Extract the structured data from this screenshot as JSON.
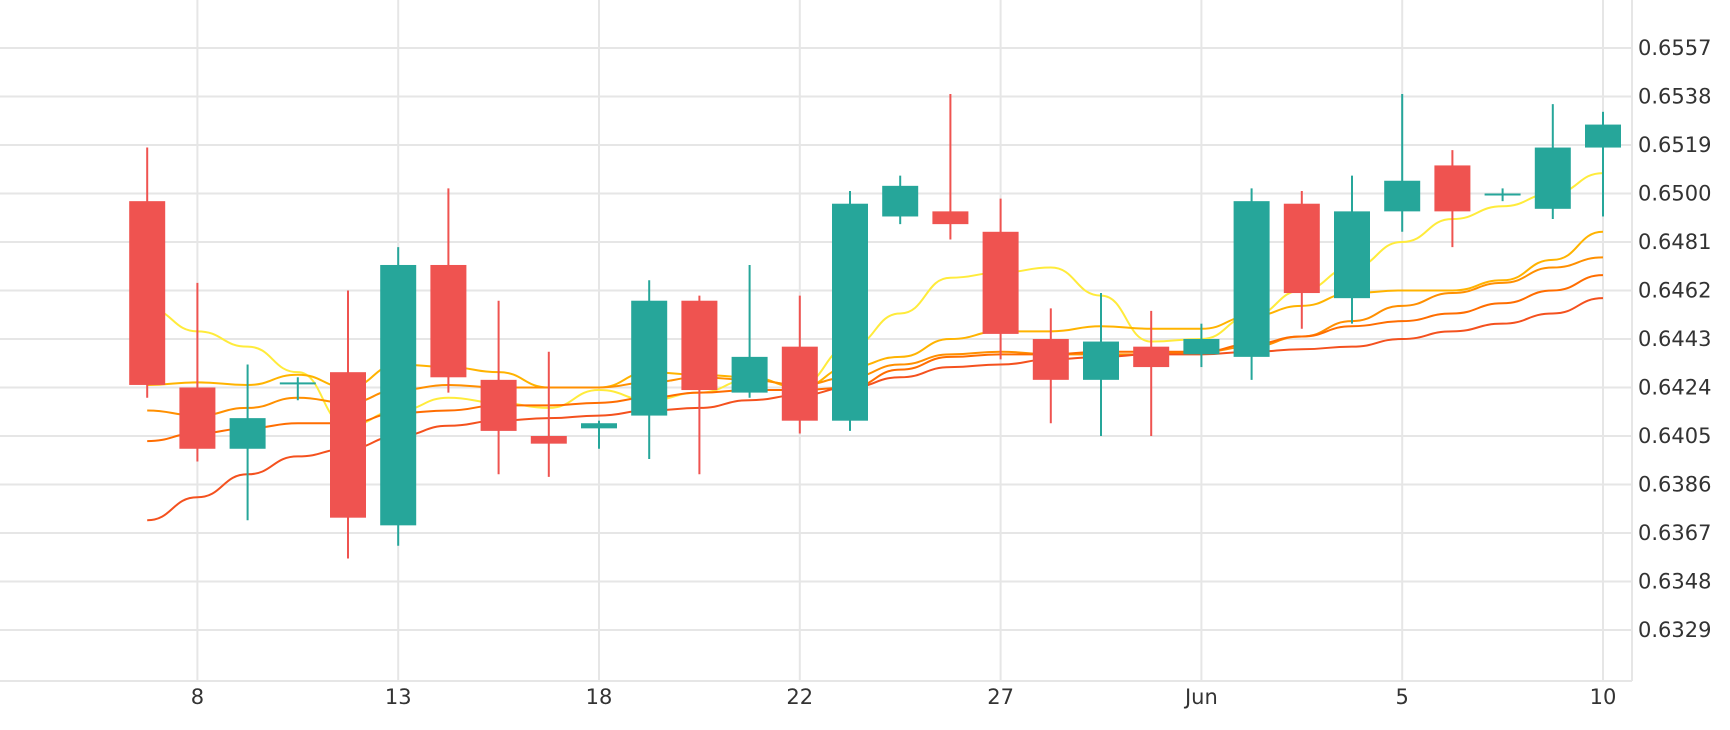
{
  "chart_data": {
    "type": "candlestick",
    "title": "",
    "xlabel": "",
    "ylabel": "",
    "ylim": [
      0.6313,
      0.6576
    ],
    "grid": true,
    "y_ticks": [
      "0.6557",
      "0.6538",
      "0.6519",
      "0.6500",
      "0.6481",
      "0.6462",
      "0.6443",
      "0.6424",
      "0.6405",
      "0.6386",
      "0.6367",
      "0.6348",
      "0.6329"
    ],
    "x_ticks": [
      {
        "label": "8",
        "day_index": 2
      },
      {
        "label": "13",
        "day_index": 6
      },
      {
        "label": "18",
        "day_index": 10
      },
      {
        "label": "22",
        "day_index": 14
      },
      {
        "label": "27",
        "day_index": 18
      },
      {
        "label": "Jun",
        "day_index": 22
      },
      {
        "label": "5",
        "day_index": 26
      },
      {
        "label": "10",
        "day_index": 30
      }
    ],
    "colors": {
      "up": "#26a69a",
      "down": "#ef5350",
      "grid": "#e6e6e6",
      "text": "#333333"
    },
    "candles": [
      {
        "i": 1,
        "open": 0.6497,
        "high": 0.6518,
        "low": 0.642,
        "close": 0.6425
      },
      {
        "i": 2,
        "open": 0.6424,
        "high": 0.6465,
        "low": 0.6395,
        "close": 0.64
      },
      {
        "i": 3,
        "open": 0.64,
        "high": 0.6433,
        "low": 0.6372,
        "close": 0.6412
      },
      {
        "i": 4,
        "open": 0.6426,
        "high": 0.6428,
        "low": 0.6419,
        "close": 0.6426
      },
      {
        "i": 5,
        "open": 0.643,
        "high": 0.6462,
        "low": 0.6357,
        "close": 0.6373
      },
      {
        "i": 6,
        "open": 0.637,
        "high": 0.6479,
        "low": 0.6362,
        "close": 0.6472
      },
      {
        "i": 7,
        "open": 0.6472,
        "high": 0.6502,
        "low": 0.6422,
        "close": 0.6428
      },
      {
        "i": 8,
        "open": 0.6427,
        "high": 0.6458,
        "low": 0.639,
        "close": 0.6407
      },
      {
        "i": 9,
        "open": 0.6405,
        "high": 0.6438,
        "low": 0.6389,
        "close": 0.6402
      },
      {
        "i": 10,
        "open": 0.6408,
        "high": 0.6411,
        "low": 0.64,
        "close": 0.641
      },
      {
        "i": 11,
        "open": 0.6413,
        "high": 0.6466,
        "low": 0.6396,
        "close": 0.6458
      },
      {
        "i": 12,
        "open": 0.6458,
        "high": 0.646,
        "low": 0.639,
        "close": 0.6423
      },
      {
        "i": 13,
        "open": 0.6422,
        "high": 0.6472,
        "low": 0.642,
        "close": 0.6436
      },
      {
        "i": 14,
        "open": 0.644,
        "high": 0.646,
        "low": 0.6406,
        "close": 0.6411
      },
      {
        "i": 15,
        "open": 0.6411,
        "high": 0.6501,
        "low": 0.6407,
        "close": 0.6496
      },
      {
        "i": 16,
        "open": 0.6491,
        "high": 0.6507,
        "low": 0.6488,
        "close": 0.6503
      },
      {
        "i": 17,
        "open": 0.6493,
        "high": 0.6539,
        "low": 0.6482,
        "close": 0.6488
      },
      {
        "i": 18,
        "open": 0.6485,
        "high": 0.6498,
        "low": 0.6435,
        "close": 0.6445
      },
      {
        "i": 19,
        "open": 0.6443,
        "high": 0.6455,
        "low": 0.641,
        "close": 0.6427
      },
      {
        "i": 20,
        "open": 0.6427,
        "high": 0.6461,
        "low": 0.6405,
        "close": 0.6442
      },
      {
        "i": 21,
        "open": 0.644,
        "high": 0.6454,
        "low": 0.6405,
        "close": 0.6432
      },
      {
        "i": 22,
        "open": 0.6437,
        "high": 0.6449,
        "low": 0.6432,
        "close": 0.6443
      },
      {
        "i": 23,
        "open": 0.6436,
        "high": 0.6502,
        "low": 0.6427,
        "close": 0.6497
      },
      {
        "i": 24,
        "open": 0.6496,
        "high": 0.6501,
        "low": 0.6447,
        "close": 0.6461
      },
      {
        "i": 25,
        "open": 0.6459,
        "high": 0.6507,
        "low": 0.6449,
        "close": 0.6493
      },
      {
        "i": 26,
        "open": 0.6493,
        "high": 0.6539,
        "low": 0.6485,
        "close": 0.6505
      },
      {
        "i": 27,
        "open": 0.6511,
        "high": 0.6517,
        "low": 0.6479,
        "close": 0.6493
      },
      {
        "i": 28,
        "open": 0.65,
        "high": 0.6502,
        "low": 0.6497,
        "close": 0.65
      },
      {
        "i": 29,
        "open": 0.6494,
        "high": 0.6535,
        "low": 0.649,
        "close": 0.6518
      },
      {
        "i": 30,
        "open": 0.6518,
        "high": 0.6532,
        "low": 0.6491,
        "close": 0.6527
      }
    ],
    "moving_averages": [
      {
        "color": "#ffeb3b",
        "points": [
          [
            1,
            0.6455
          ],
          [
            2,
            0.6446
          ],
          [
            3,
            0.644
          ],
          [
            4,
            0.643
          ],
          [
            5,
            0.6409
          ],
          [
            6,
            0.6415
          ],
          [
            7,
            0.642
          ],
          [
            8,
            0.6418
          ],
          [
            9,
            0.6416
          ],
          [
            10,
            0.6423
          ],
          [
            11,
            0.6419
          ],
          [
            12,
            0.6422
          ],
          [
            13,
            0.6427
          ],
          [
            14,
            0.6425
          ],
          [
            15,
            0.644
          ],
          [
            16,
            0.6453
          ],
          [
            17,
            0.6467
          ],
          [
            18,
            0.6469
          ],
          [
            19,
            0.6471
          ],
          [
            20,
            0.646
          ],
          [
            21,
            0.6442
          ],
          [
            22,
            0.6443
          ],
          [
            23,
            0.6452
          ],
          [
            24,
            0.6462
          ],
          [
            25,
            0.6471
          ],
          [
            26,
            0.6481
          ],
          [
            27,
            0.649
          ],
          [
            28,
            0.6495
          ],
          [
            29,
            0.65
          ],
          [
            30,
            0.6508
          ]
        ]
      },
      {
        "color": "#ffb300",
        "points": [
          [
            1,
            0.6425
          ],
          [
            2,
            0.6426
          ],
          [
            3,
            0.6425
          ],
          [
            4,
            0.6429
          ],
          [
            5,
            0.6424
          ],
          [
            6,
            0.6433
          ],
          [
            7,
            0.6432
          ],
          [
            8,
            0.643
          ],
          [
            9,
            0.6424
          ],
          [
            10,
            0.6424
          ],
          [
            11,
            0.643
          ],
          [
            12,
            0.6429
          ],
          [
            13,
            0.6428
          ],
          [
            14,
            0.6424
          ],
          [
            15,
            0.6432
          ],
          [
            16,
            0.6436
          ],
          [
            17,
            0.6443
          ],
          [
            18,
            0.6446
          ],
          [
            19,
            0.6446
          ],
          [
            20,
            0.6448
          ],
          [
            21,
            0.6447
          ],
          [
            22,
            0.6447
          ],
          [
            23,
            0.6452
          ],
          [
            24,
            0.6456
          ],
          [
            25,
            0.6461
          ],
          [
            26,
            0.6462
          ],
          [
            27,
            0.6462
          ],
          [
            28,
            0.6466
          ],
          [
            29,
            0.6474
          ],
          [
            30,
            0.6485
          ]
        ]
      },
      {
        "color": "#ff8f00",
        "points": [
          [
            1,
            0.6415
          ],
          [
            2,
            0.6413
          ],
          [
            3,
            0.6416
          ],
          [
            4,
            0.642
          ],
          [
            5,
            0.6418
          ],
          [
            6,
            0.6423
          ],
          [
            7,
            0.6425
          ],
          [
            8,
            0.6424
          ],
          [
            9,
            0.6424
          ],
          [
            10,
            0.6424
          ],
          [
            11,
            0.6426
          ],
          [
            12,
            0.6428
          ],
          [
            13,
            0.6427
          ],
          [
            14,
            0.6425
          ],
          [
            15,
            0.6428
          ],
          [
            16,
            0.6433
          ],
          [
            17,
            0.6437
          ],
          [
            18,
            0.6438
          ],
          [
            19,
            0.6437
          ],
          [
            20,
            0.6437
          ],
          [
            21,
            0.6437
          ],
          [
            22,
            0.6438
          ],
          [
            23,
            0.644
          ],
          [
            24,
            0.6444
          ],
          [
            25,
            0.645
          ],
          [
            26,
            0.6456
          ],
          [
            27,
            0.6461
          ],
          [
            28,
            0.6465
          ],
          [
            29,
            0.6471
          ],
          [
            30,
            0.6475
          ]
        ]
      },
      {
        "color": "#ff6d00",
        "points": [
          [
            1,
            0.6403
          ],
          [
            2,
            0.6406
          ],
          [
            3,
            0.6408
          ],
          [
            4,
            0.641
          ],
          [
            5,
            0.641
          ],
          [
            6,
            0.6414
          ],
          [
            7,
            0.6415
          ],
          [
            8,
            0.6417
          ],
          [
            9,
            0.6417
          ],
          [
            10,
            0.6418
          ],
          [
            11,
            0.642
          ],
          [
            12,
            0.6422
          ],
          [
            13,
            0.6423
          ],
          [
            14,
            0.6423
          ],
          [
            15,
            0.6424
          ],
          [
            16,
            0.6431
          ],
          [
            17,
            0.6436
          ],
          [
            18,
            0.6437
          ],
          [
            19,
            0.6437
          ],
          [
            20,
            0.6438
          ],
          [
            21,
            0.6438
          ],
          [
            22,
            0.6438
          ],
          [
            23,
            0.6441
          ],
          [
            24,
            0.6444
          ],
          [
            25,
            0.6448
          ],
          [
            26,
            0.645
          ],
          [
            27,
            0.6453
          ],
          [
            28,
            0.6457
          ],
          [
            29,
            0.6462
          ],
          [
            30,
            0.6468
          ]
        ]
      },
      {
        "color": "#f4511e",
        "points": [
          [
            1,
            0.6372
          ],
          [
            2,
            0.6381
          ],
          [
            3,
            0.639
          ],
          [
            4,
            0.6397
          ],
          [
            5,
            0.64
          ],
          [
            6,
            0.6405
          ],
          [
            7,
            0.6409
          ],
          [
            8,
            0.6411
          ],
          [
            9,
            0.6412
          ],
          [
            10,
            0.6413
          ],
          [
            11,
            0.6415
          ],
          [
            12,
            0.6416
          ],
          [
            13,
            0.6419
          ],
          [
            14,
            0.6421
          ],
          [
            15,
            0.6424
          ],
          [
            16,
            0.6428
          ],
          [
            17,
            0.6432
          ],
          [
            18,
            0.6433
          ],
          [
            19,
            0.6435
          ],
          [
            20,
            0.6436
          ],
          [
            21,
            0.6437
          ],
          [
            22,
            0.6437
          ],
          [
            23,
            0.6438
          ],
          [
            24,
            0.6439
          ],
          [
            25,
            0.644
          ],
          [
            26,
            0.6443
          ],
          [
            27,
            0.6446
          ],
          [
            28,
            0.6449
          ],
          [
            29,
            0.6453
          ],
          [
            30,
            0.6459
          ]
        ]
      }
    ]
  }
}
